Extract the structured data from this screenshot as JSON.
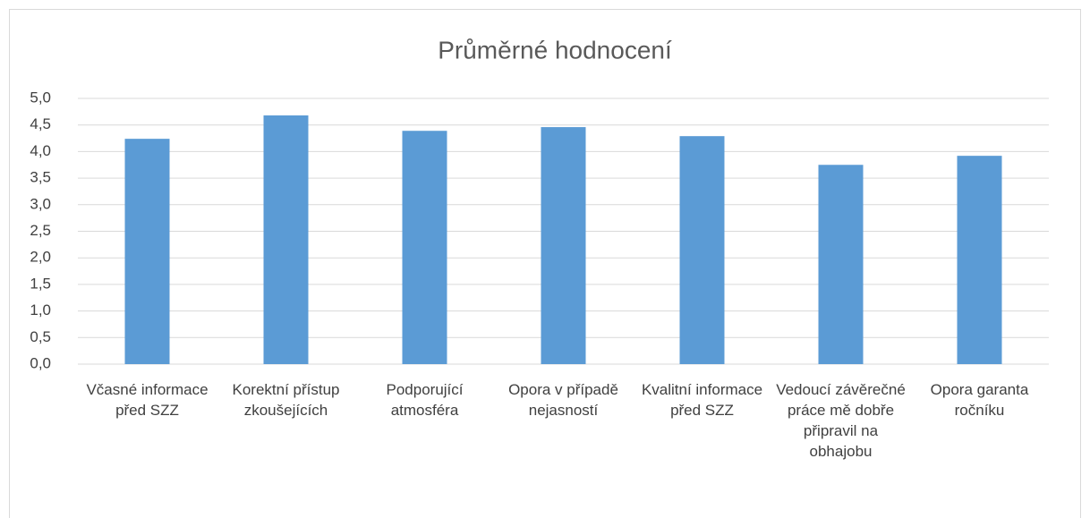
{
  "chart_data": {
    "type": "bar",
    "title": "Průměrné hodnocení",
    "categories": [
      "Včasné informace před SZZ",
      "Korektní přístup zkoušejících",
      "Podporující atmosféra",
      "Opora v případě nejasností",
      "Kvalitní informace před SZZ",
      "Vedoucí závěrečné práce mě dobře připravil na obhajobu",
      "Opora garanta ročníku"
    ],
    "values": [
      4.24,
      4.68,
      4.39,
      4.46,
      4.29,
      3.75,
      3.92
    ],
    "color": "#5b9bd5",
    "ylim": [
      0,
      5
    ],
    "yticks": [
      {
        "value": 0,
        "label": "0,0"
      },
      {
        "value": 0.5,
        "label": "0,5"
      },
      {
        "value": 1,
        "label": "1,0"
      },
      {
        "value": 1.5,
        "label": "1,5"
      },
      {
        "value": 2,
        "label": "2,0"
      },
      {
        "value": 2.5,
        "label": "2,5"
      },
      {
        "value": 3,
        "label": "3,0"
      },
      {
        "value": 3.5,
        "label": "3,5"
      },
      {
        "value": 4,
        "label": "4,0"
      },
      {
        "value": 4.5,
        "label": "4,5"
      },
      {
        "value": 5,
        "label": "5,0"
      }
    ],
    "grid": true
  }
}
